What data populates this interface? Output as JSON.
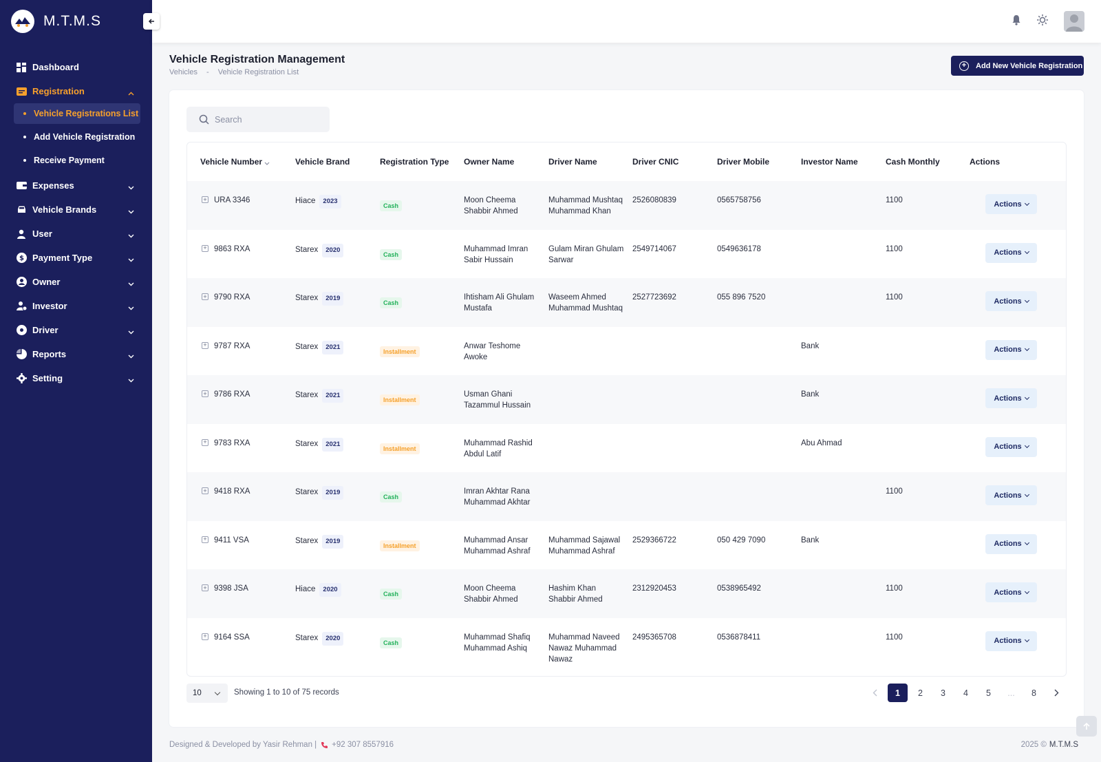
{
  "app": {
    "name": "M.T.M.S"
  },
  "sidebar": {
    "items": [
      {
        "label": "Dashboard",
        "icon": "dashboard-icon"
      },
      {
        "label": "Registration",
        "icon": "registration-icon",
        "active": true,
        "expanded": true,
        "children": [
          {
            "label": "Vehicle Registrations List",
            "active": true
          },
          {
            "label": "Add Vehicle Registration"
          },
          {
            "label": "Receive Payment"
          }
        ]
      },
      {
        "label": "Expenses",
        "icon": "wallet-icon"
      },
      {
        "label": "Vehicle Brands",
        "icon": "car-icon"
      },
      {
        "label": "User",
        "icon": "user-icon"
      },
      {
        "label": "Payment Type",
        "icon": "dollar-icon"
      },
      {
        "label": "Owner",
        "icon": "owner-icon"
      },
      {
        "label": "Investor",
        "icon": "investor-icon"
      },
      {
        "label": "Driver",
        "icon": "driver-icon"
      },
      {
        "label": "Reports",
        "icon": "reports-icon"
      },
      {
        "label": "Setting",
        "icon": "gear-icon"
      }
    ]
  },
  "page": {
    "title": "Vehicle Registration Management",
    "breadcrumb": [
      "Vehicles",
      "-",
      "Vehicle Registration List"
    ],
    "add_button": "Add New Vehicle Registration"
  },
  "search": {
    "placeholder": "Search"
  },
  "table": {
    "columns": [
      "Vehicle Number",
      "Vehicle Brand",
      "Registration Type",
      "Owner Name",
      "Driver Name",
      "Driver CNIC",
      "Driver Mobile",
      "Investor Name",
      "Cash Monthly",
      "Actions"
    ],
    "action_label": "Actions",
    "rows": [
      {
        "number": "URA 3346",
        "brand": "Hiace",
        "year": "2023",
        "type": "Cash",
        "owner": [
          "Moon Cheema",
          "Shabbir Ahmed"
        ],
        "driver": [
          "Muhammad Mushtaq",
          "Muhammad Khan"
        ],
        "cnic": "2526080839",
        "mobile": "0565758756",
        "investor": "",
        "cash": "1100"
      },
      {
        "number": "9863 RXA",
        "brand": "Starex",
        "year": "2020",
        "type": "Cash",
        "owner": [
          "Muhammad Imran",
          "Sabir Hussain"
        ],
        "driver": [
          "Gulam Miran Ghulam",
          "Sarwar"
        ],
        "cnic": "2549714067",
        "mobile": "0549636178",
        "investor": "",
        "cash": "1100"
      },
      {
        "number": "9790 RXA",
        "brand": "Starex",
        "year": "2019",
        "type": "Cash",
        "owner": [
          "Ihtisham Ali Ghulam",
          "Mustafa"
        ],
        "driver": [
          "Waseem Ahmed",
          "Muhammad Mushtaq"
        ],
        "cnic": "2527723692",
        "mobile": "055 896 7520",
        "investor": "",
        "cash": "1100"
      },
      {
        "number": "9787 RXA",
        "brand": "Starex",
        "year": "2021",
        "type": "Installment",
        "owner": [
          "Anwar Teshome",
          "Awoke"
        ],
        "driver": [],
        "cnic": "",
        "mobile": "",
        "investor": "Bank",
        "cash": ""
      },
      {
        "number": "9786 RXA",
        "brand": "Starex",
        "year": "2021",
        "type": "Installment",
        "owner": [
          "Usman Ghani",
          "Tazammul Hussain"
        ],
        "driver": [],
        "cnic": "",
        "mobile": "",
        "investor": "Bank",
        "cash": ""
      },
      {
        "number": "9783 RXA",
        "brand": "Starex",
        "year": "2021",
        "type": "Installment",
        "owner": [
          "Muhammad Rashid",
          "Abdul Latif"
        ],
        "driver": [],
        "cnic": "",
        "mobile": "",
        "investor": "Abu Ahmad",
        "cash": ""
      },
      {
        "number": "9418 RXA",
        "brand": "Starex",
        "year": "2019",
        "type": "Cash",
        "owner": [
          "Imran Akhtar Rana",
          "Muhammad Akhtar"
        ],
        "driver": [],
        "cnic": "",
        "mobile": "",
        "investor": "",
        "cash": "1100"
      },
      {
        "number": "9411 VSA",
        "brand": "Starex",
        "year": "2019",
        "type": "Installment",
        "owner": [
          "Muhammad Ansar",
          "Muhammad Ashraf"
        ],
        "driver": [
          "Muhammad Sajawal",
          "Muhammad Ashraf"
        ],
        "cnic": "2529366722",
        "mobile": "050 429 7090",
        "investor": "Bank",
        "cash": ""
      },
      {
        "number": "9398 JSA",
        "brand": "Hiace",
        "year": "2020",
        "type": "Cash",
        "owner": [
          "Moon Cheema",
          "Shabbir Ahmed"
        ],
        "driver": [
          "Hashim Khan",
          "Shabbir Ahmed"
        ],
        "cnic": "2312920453",
        "mobile": "0538965492",
        "investor": "",
        "cash": "1100"
      },
      {
        "number": "9164 SSA",
        "brand": "Starex",
        "year": "2020",
        "type": "Cash",
        "owner": [
          "Muhammad Shafiq",
          "Muhammad Ashiq"
        ],
        "driver": [
          "Muhammad Naveed",
          "Nawaz Muhammad",
          "Nawaz"
        ],
        "cnic": "2495365708",
        "mobile": "0536878411",
        "investor": "",
        "cash": "1100"
      }
    ]
  },
  "pagination": {
    "page_size": "10",
    "showing": "Showing 1 to 10 of 75 records",
    "pages": [
      "1",
      "2",
      "3",
      "4",
      "5",
      "...",
      "8"
    ],
    "current": "1"
  },
  "footer": {
    "credit": "Designed & Developed by Yasir Rehman |",
    "phone": "+92 307 8557916",
    "year": "2025 ©",
    "brand": "M.T.M.S"
  },
  "colors": {
    "sidebar": "#1b1f5c",
    "accent": "#f7a02c",
    "cash": "#22b15a",
    "installment": "#f5a02a"
  }
}
